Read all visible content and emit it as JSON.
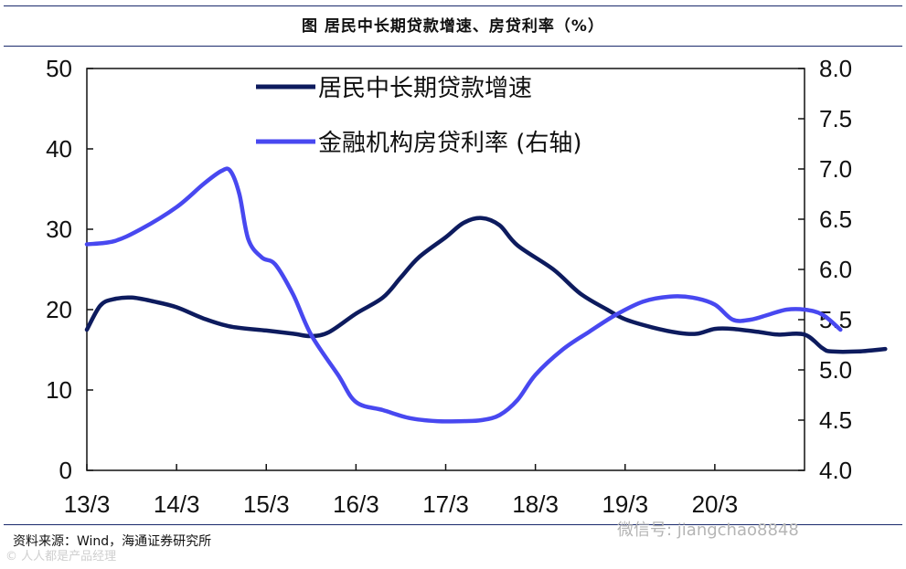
{
  "title": "图 居民中长期贷款增速、房贷利率（%）",
  "source": "资料来源：Wind，海通证券研究所",
  "watermark_left": "©  人人都是产品经理",
  "watermark_right": "微信号: jiangchao8848",
  "colors": {
    "rule": "#1a2a6c",
    "series1": "#0d1b5e",
    "series2": "#4848f0"
  },
  "chart_data": {
    "type": "line",
    "title": "",
    "x_tick_labels": [
      "13/3",
      "14/3",
      "15/3",
      "16/3",
      "17/3",
      "18/3",
      "19/3",
      "20/3"
    ],
    "y_left": {
      "min": 0,
      "max": 50,
      "ticks": [
        "0",
        "10",
        "20",
        "30",
        "40",
        "50"
      ]
    },
    "y_right": {
      "min": 4.0,
      "max": 8.0,
      "ticks": [
        "4.0",
        "4.5",
        "5.0",
        "5.5",
        "6.0",
        "6.5",
        "7.0",
        "7.5",
        "8.0"
      ]
    },
    "legend_placement": "top-center",
    "series": [
      {
        "name": "居民中长期贷款增速",
        "axis": "left",
        "points": [
          [
            0,
            17.5
          ],
          [
            0.15,
            20.5
          ],
          [
            0.3,
            21.3
          ],
          [
            0.5,
            21.5
          ],
          [
            0.75,
            21
          ],
          [
            1.0,
            20.3
          ],
          [
            1.3,
            18.9
          ],
          [
            1.6,
            17.9
          ],
          [
            2.0,
            17.4
          ],
          [
            2.3,
            17
          ],
          [
            2.5,
            16.7
          ],
          [
            2.7,
            17.2
          ],
          [
            3.0,
            19.5
          ],
          [
            3.3,
            21.5
          ],
          [
            3.5,
            24
          ],
          [
            3.7,
            26.5
          ],
          [
            4.0,
            29
          ],
          [
            4.2,
            30.8
          ],
          [
            4.4,
            31.4
          ],
          [
            4.6,
            30.5
          ],
          [
            4.8,
            28
          ],
          [
            5.2,
            25
          ],
          [
            5.5,
            22
          ],
          [
            5.8,
            20
          ],
          [
            6.0,
            18.8
          ],
          [
            6.3,
            17.8
          ],
          [
            6.6,
            17.1
          ],
          [
            6.8,
            17
          ],
          [
            7.0,
            17.6
          ],
          [
            7.2,
            17.6
          ],
          [
            7.5,
            17.2
          ],
          [
            7.7,
            16.9
          ],
          [
            8.0,
            16.9
          ],
          [
            8.2,
            15.2
          ],
          [
            8.3,
            14.8
          ],
          [
            8.6,
            14.8
          ],
          [
            8.9,
            15.1
          ]
        ]
      },
      {
        "name": "金融机构房贷利率 (右轴)",
        "axis": "right",
        "points": [
          [
            0,
            6.25
          ],
          [
            0.3,
            6.28
          ],
          [
            0.6,
            6.4
          ],
          [
            1.0,
            6.62
          ],
          [
            1.3,
            6.85
          ],
          [
            1.5,
            6.98
          ],
          [
            1.6,
            6.98
          ],
          [
            1.7,
            6.75
          ],
          [
            1.8,
            6.3
          ],
          [
            1.95,
            6.12
          ],
          [
            2.1,
            6.05
          ],
          [
            2.3,
            5.75
          ],
          [
            2.5,
            5.35
          ],
          [
            2.8,
            4.95
          ],
          [
            3.0,
            4.68
          ],
          [
            3.3,
            4.6
          ],
          [
            3.6,
            4.52
          ],
          [
            3.9,
            4.49
          ],
          [
            4.2,
            4.49
          ],
          [
            4.4,
            4.5
          ],
          [
            4.6,
            4.55
          ],
          [
            4.8,
            4.7
          ],
          [
            5.0,
            4.95
          ],
          [
            5.3,
            5.2
          ],
          [
            5.6,
            5.38
          ],
          [
            5.9,
            5.55
          ],
          [
            6.2,
            5.68
          ],
          [
            6.5,
            5.73
          ],
          [
            6.75,
            5.72
          ],
          [
            7.0,
            5.65
          ],
          [
            7.2,
            5.5
          ],
          [
            7.4,
            5.5
          ],
          [
            7.6,
            5.55
          ],
          [
            7.8,
            5.6
          ],
          [
            8.0,
            5.6
          ],
          [
            8.2,
            5.55
          ],
          [
            8.4,
            5.4
          ]
        ]
      }
    ]
  }
}
